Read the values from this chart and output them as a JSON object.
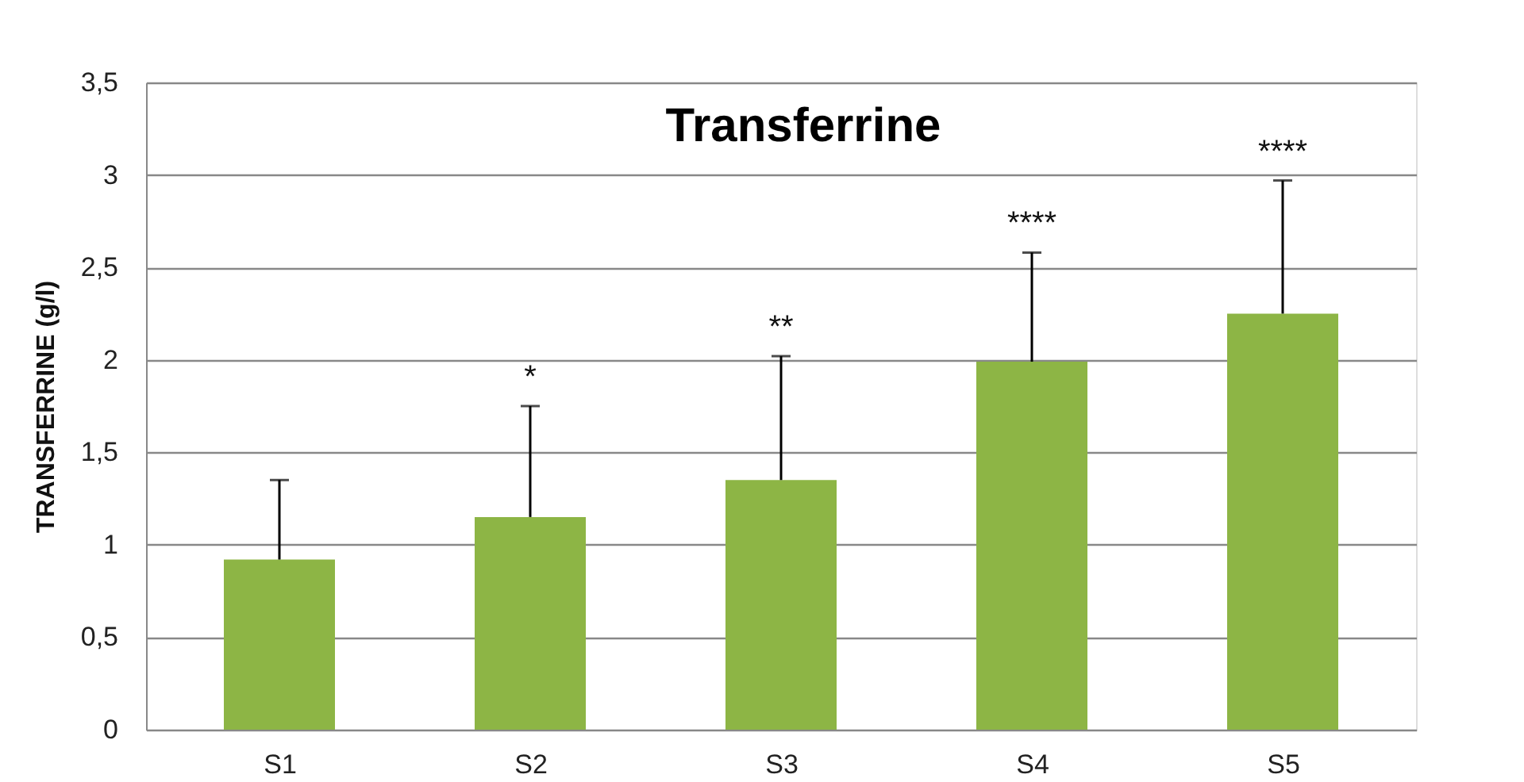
{
  "chart_data": {
    "type": "bar",
    "title": "Transferrine",
    "ylabel": "TRANSFERRINE (g/l)",
    "categories": [
      "S1",
      "S2",
      "S3",
      "S4",
      "S5"
    ],
    "values": [
      0.92,
      1.15,
      1.35,
      1.99,
      2.25
    ],
    "errors": [
      [
        0.92,
        1.35
      ],
      [
        1.15,
        1.75
      ],
      [
        1.35,
        2.02
      ],
      [
        1.99,
        2.58
      ],
      [
        2.25,
        2.97
      ]
    ],
    "color": "#8db545",
    "ylim": [
      0,
      3.5
    ],
    "yticks": [
      0,
      {
        "value": 0.5,
        "label": "0,5"
      },
      1,
      {
        "value": 1.5,
        "label": "1,5"
      },
      2,
      {
        "value": 2.5,
        "label": "2,5"
      },
      3,
      {
        "value": 3.5,
        "label": "3,5"
      }
    ],
    "grid": "y",
    "annotations": [
      "*",
      "**",
      "****",
      "****"
    ]
  }
}
